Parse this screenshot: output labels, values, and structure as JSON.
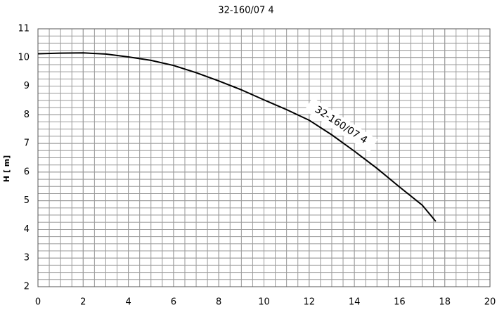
{
  "chart_data": {
    "type": "line",
    "title": "32-160/07 4",
    "y_label": "H [ m]",
    "x": [
      0,
      1,
      2,
      3,
      4,
      5,
      6,
      7,
      8,
      9,
      10,
      11,
      12,
      13,
      14,
      15,
      16,
      17,
      17.6
    ],
    "series": [
      {
        "name": "32-160/07 4",
        "color": "#000000",
        "values": [
          10.13,
          10.15,
          10.16,
          10.12,
          10.02,
          9.9,
          9.72,
          9.47,
          9.18,
          8.87,
          8.52,
          8.18,
          7.81,
          7.3,
          6.73,
          6.13,
          5.48,
          4.85,
          4.28
        ]
      }
    ],
    "xlim": [
      0,
      20
    ],
    "xticks": [
      0,
      2,
      4,
      6,
      8,
      10,
      12,
      14,
      16,
      18,
      20
    ],
    "ylim": [
      2,
      11
    ],
    "yticks": [
      2,
      3,
      4,
      5,
      6,
      7,
      8,
      9,
      10,
      11
    ],
    "grid": true,
    "x_minor_step": 0.5,
    "y_minor_step": 0.25
  }
}
